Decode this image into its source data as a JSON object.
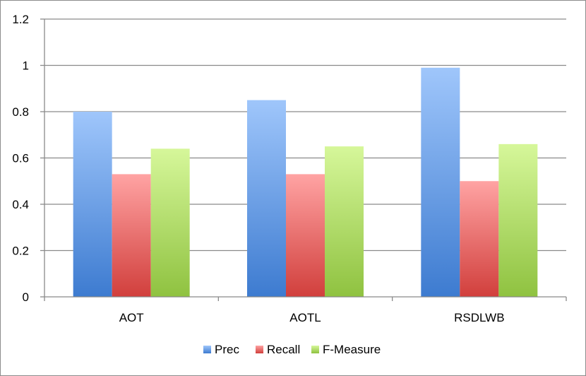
{
  "chart_data": {
    "type": "bar",
    "categories": [
      "AOT",
      "AOTL",
      "RSDLWB"
    ],
    "series": [
      {
        "name": "Prec",
        "values": [
          0.8,
          0.85,
          0.99
        ],
        "color_top": "#9fc6fb",
        "color_bottom": "#3d7bd0"
      },
      {
        "name": "Recall",
        "values": [
          0.53,
          0.53,
          0.5
        ],
        "color_top": "#ffa3a3",
        "color_bottom": "#d13f3c"
      },
      {
        "name": "F-Measure",
        "values": [
          0.64,
          0.65,
          0.66
        ],
        "color_top": "#d6f79a",
        "color_bottom": "#8fc240"
      }
    ],
    "ylim": [
      0,
      1.2
    ],
    "yticks": [
      0,
      0.2,
      0.4,
      0.6,
      0.8,
      1,
      1.2
    ],
    "ytick_labels": [
      "0",
      "0.2",
      "0.4",
      "0.6",
      "0.8",
      "1",
      "1.2"
    ],
    "grid": true,
    "legend_position": "bottom",
    "title": "",
    "xlabel": "",
    "ylabel": ""
  }
}
